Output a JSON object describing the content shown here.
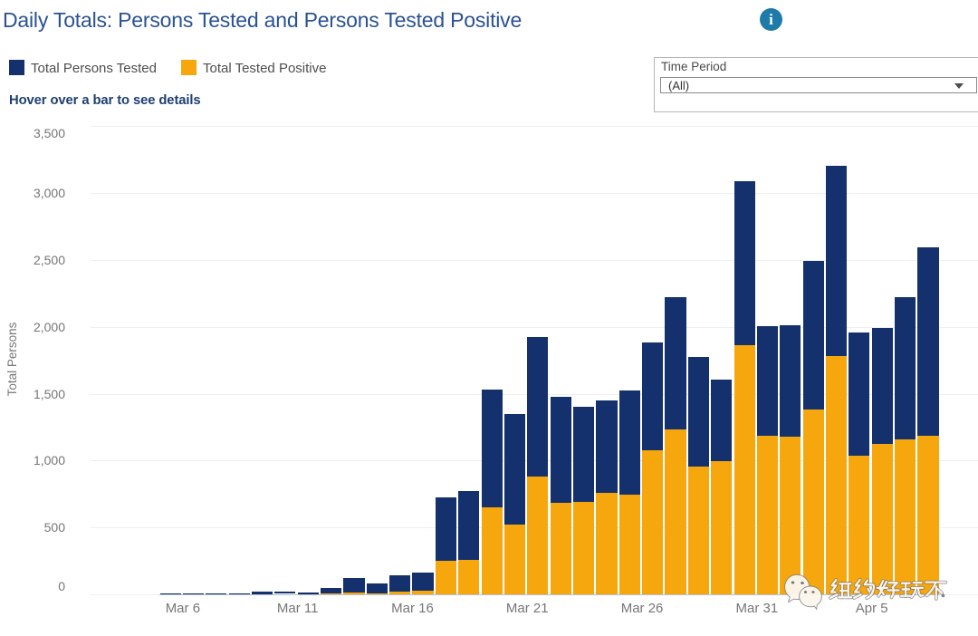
{
  "header": {
    "title": "Daily Totals: Persons Tested and Persons Tested Positive",
    "title_color": "#2a5294",
    "info_icon": "i"
  },
  "legend": {
    "items": [
      {
        "label": "Total Persons Tested",
        "color": "#14316d"
      },
      {
        "label": "Total Tested Positive",
        "color": "#f7a70e"
      }
    ]
  },
  "hover_note": "Hover over a bar to see details",
  "filter": {
    "label": "Time Period",
    "value": "(All)"
  },
  "watermark": {
    "text": "纽约好玩不",
    "icon": "wechat-logo"
  },
  "colors": {
    "tested_navy": "#14316d",
    "positive_orange": "#f7a70e",
    "axis_text": "#767676",
    "gridline": "#ececec"
  },
  "chart_data": {
    "type": "bar",
    "stacked": true,
    "title": "Daily Totals: Persons Tested and Persons Tested Positive",
    "xlabel": "",
    "ylabel": "Total Persons",
    "ylim": [
      0,
      3500
    ],
    "y_ticks": [
      0,
      500,
      1000,
      1500,
      2000,
      2500,
      3000,
      3500
    ],
    "y_tick_labels": [
      "0",
      "500",
      "1,000",
      "1,500",
      "2,000",
      "2,500",
      "3,000",
      "3,500"
    ],
    "x_tick_labels": [
      "Mar 6",
      "Mar 11",
      "Mar 16",
      "Mar 21",
      "Mar 26",
      "Mar 31",
      "Apr 5"
    ],
    "grid": true,
    "legend_position": "top-left",
    "categories": [
      "Mar 5",
      "Mar 6",
      "Mar 7",
      "Mar 8",
      "Mar 9",
      "Mar 10",
      "Mar 11",
      "Mar 12",
      "Mar 13",
      "Mar 14",
      "Mar 15",
      "Mar 16",
      "Mar 17",
      "Mar 18",
      "Mar 19",
      "Mar 20",
      "Mar 21",
      "Mar 22",
      "Mar 23",
      "Mar 24",
      "Mar 25",
      "Mar 26",
      "Mar 27",
      "Mar 28",
      "Mar 29",
      "Mar 30",
      "Mar 31",
      "Apr 1",
      "Apr 2",
      "Apr 3",
      "Apr 4",
      "Apr 5",
      "Apr 6",
      "Apr 7"
    ],
    "series": [
      {
        "name": "Total Persons Tested",
        "color": "#14316d",
        "values": [
          5,
          7,
          9,
          10,
          20,
          23,
          15,
          50,
          124,
          84,
          140,
          163,
          725,
          770,
          1532,
          1350,
          1922,
          1478,
          1403,
          1451,
          1522,
          1886,
          2224,
          1772,
          1604,
          3088,
          2005,
          2014,
          2490,
          3206,
          1957,
          1989,
          2219,
          2592
        ]
      },
      {
        "name": "Total Tested Positive",
        "color": "#f7a70e",
        "values": [
          0,
          1,
          1,
          2,
          3,
          4,
          3,
          8,
          14,
          10,
          17,
          24,
          248,
          259,
          652,
          525,
          878,
          684,
          690,
          762,
          748,
          1080,
          1230,
          956,
          997,
          1864,
          1188,
          1176,
          1385,
          1784,
          1034,
          1124,
          1158,
          1188
        ]
      }
    ]
  }
}
